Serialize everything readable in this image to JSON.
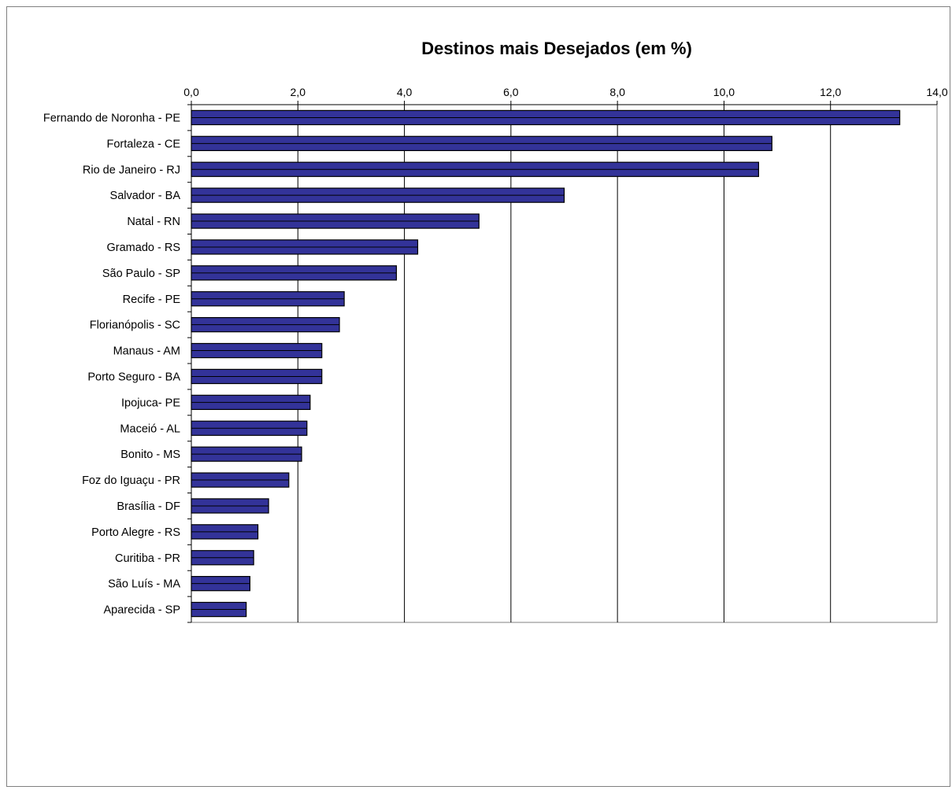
{
  "chart_data": {
    "type": "bar",
    "orientation": "horizontal",
    "title": "Destinos mais Desejados (em %)",
    "xlabel": "",
    "ylabel": "",
    "xlim": [
      0,
      14
    ],
    "xticks": [
      "0,0",
      "2,0",
      "4,0",
      "6,0",
      "8,0",
      "10,0",
      "12,0",
      "14,0"
    ],
    "xaxis_position": "top",
    "grid": "vertical",
    "legend": "none",
    "bar_color": "#333399",
    "bar_outline": "#000000",
    "categories": [
      "Fernando de Noronha - PE",
      "Fortaleza - CE",
      "Rio de Janeiro - RJ",
      "Salvador - BA",
      "Natal - RN",
      "Gramado - RS",
      "São Paulo - SP",
      "Recife - PE",
      "Florianópolis - SC",
      "Manaus - AM",
      "Porto Seguro - BA",
      "Ipojuca- PE",
      "Maceió - AL",
      "Bonito - MS",
      "Foz do Iguaçu - PR",
      "Brasília - DF",
      "Porto Alegre - RS",
      "Curitiba - PR",
      "São Luís - MA",
      "Aparecida - SP"
    ],
    "values": [
      13.3,
      10.9,
      10.65,
      7.0,
      5.4,
      4.25,
      3.85,
      2.87,
      2.78,
      2.45,
      2.45,
      2.23,
      2.17,
      2.07,
      1.83,
      1.45,
      1.25,
      1.17,
      1.1,
      1.03
    ]
  }
}
